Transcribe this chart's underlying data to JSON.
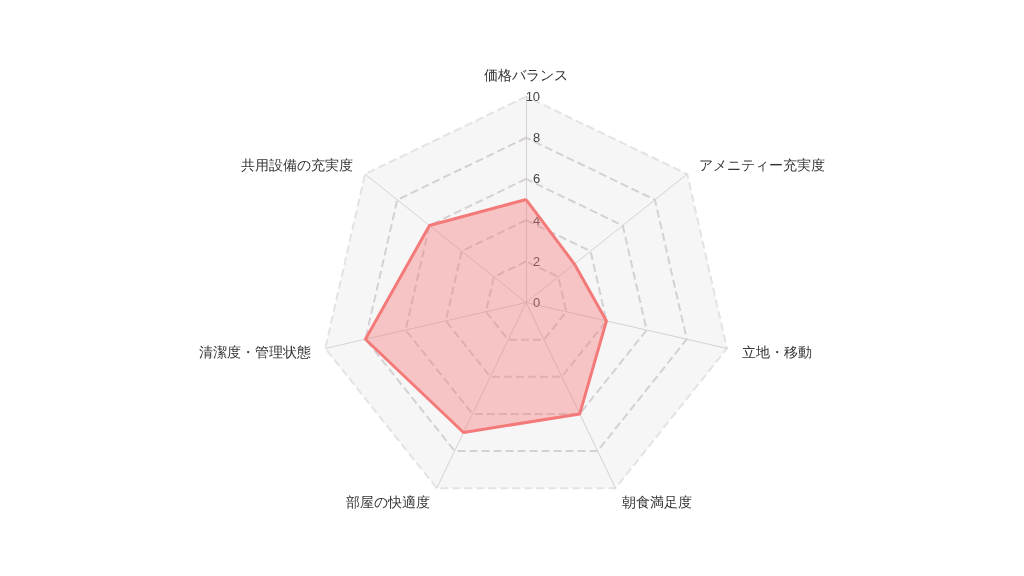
{
  "chart_data": {
    "type": "radar",
    "categories": [
      "価格バランス",
      "アメニティー充実度",
      "立地・移動",
      "朝食満足度",
      "部屋の快適度",
      "清潔度・管理状態",
      "共用設備の充実度"
    ],
    "series": [
      {
        "color": "#f47a7a",
        "values": [
          5,
          3,
          4,
          6,
          7,
          8,
          6
        ]
      }
    ],
    "ylim": [
      0,
      10
    ],
    "yticks": [
      0,
      2,
      4,
      6,
      8,
      10
    ],
    "grid": true,
    "line_style": "solid",
    "marker": "none"
  }
}
